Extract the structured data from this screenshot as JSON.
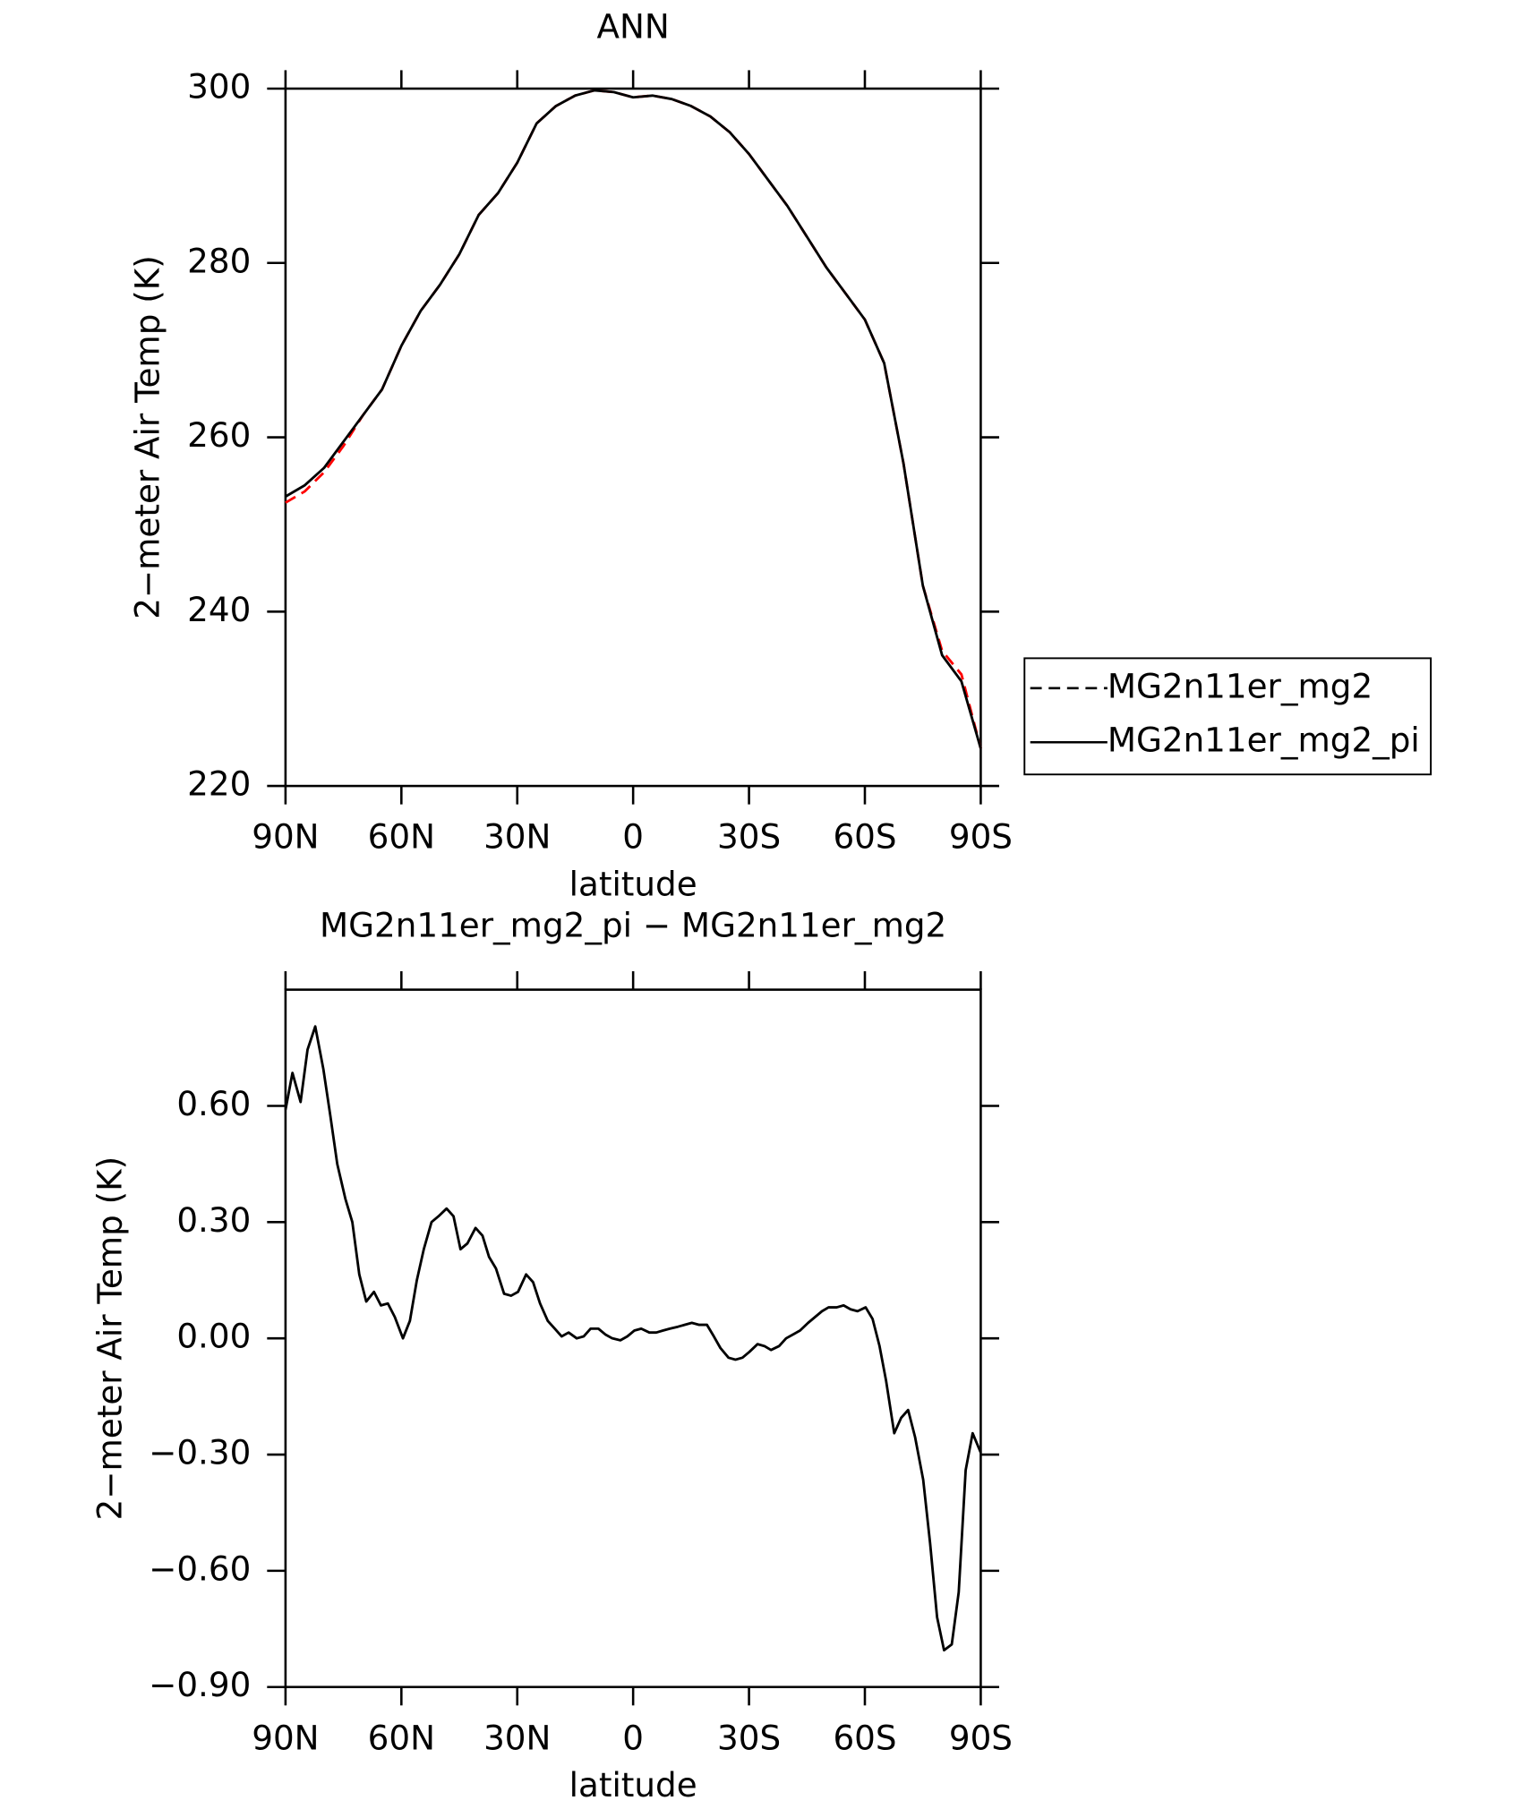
{
  "chart_data": [
    {
      "type": "line",
      "title": "ANN",
      "x_label": "latitude",
      "y_label": "2−meter Air Temp (K)",
      "x": [
        90,
        85,
        80,
        75,
        70,
        65,
        60,
        55,
        50,
        45,
        40,
        35,
        30,
        25,
        20,
        15,
        10,
        5,
        0,
        -5,
        -10,
        -15,
        -20,
        -25,
        -30,
        -35,
        -40,
        -45,
        -50,
        -55,
        -60,
        -65,
        -70,
        -75,
        -80,
        -85,
        -90
      ],
      "series": [
        {
          "name": "MG2n11er_mg2",
          "color": "#ff0000",
          "dash": true,
          "values": [
            252.5,
            253.8,
            256,
            259,
            262.5,
            265.5,
            270.5,
            274.5,
            277.5,
            281,
            285.5,
            288,
            291.5,
            296,
            298,
            299.2,
            299.8,
            299.6,
            299,
            299.2,
            298.8,
            298,
            296.8,
            295,
            292.5,
            289.5,
            286.5,
            283,
            279.5,
            276.5,
            273.5,
            268.5,
            257,
            243,
            235.5,
            232.8,
            224.3
          ]
        },
        {
          "name": "MG2n11er_mg2_pi",
          "color": "#000000",
          "dash": false,
          "values": [
            253.2,
            254.5,
            256.5,
            259.5,
            262.5,
            265.5,
            270.5,
            274.5,
            277.5,
            281,
            285.5,
            288,
            291.5,
            296,
            298,
            299.2,
            299.8,
            299.6,
            299,
            299.2,
            298.8,
            298,
            296.8,
            295,
            292.5,
            289.5,
            286.5,
            283,
            279.5,
            276.5,
            273.5,
            268.5,
            257,
            243,
            235,
            232,
            224.3
          ]
        }
      ],
      "xlim": [
        90,
        -90
      ],
      "xticks": [
        {
          "value": 90,
          "label": "90N"
        },
        {
          "value": 60,
          "label": "60N"
        },
        {
          "value": 30,
          "label": "30N"
        },
        0,
        {
          "value": -30,
          "label": "30S"
        },
        {
          "value": -60,
          "label": "60S"
        },
        {
          "value": -90,
          "label": "90S"
        }
      ],
      "ylim": [
        220,
        300
      ],
      "yticks": [
        220,
        240,
        260,
        280,
        300
      ],
      "legend": "right"
    },
    {
      "type": "line",
      "title": "MG2n11er_mg2_pi − MG2n11er_mg2",
      "x_label": "latitude",
      "y_label": "2−meter Air Temp (K)",
      "x": [
        90,
        88.2,
        86.1,
        84.3,
        82.3,
        80.2,
        78.4,
        76.6,
        74.5,
        72.7,
        70.9,
        69.1,
        67.1,
        65.3,
        63.5,
        61.7,
        59.6,
        57.8,
        56,
        54.2,
        52.2,
        50.4,
        48.3,
        46.5,
        44.7,
        42.9,
        40.8,
        39,
        37.3,
        35.5,
        33.4,
        31.6,
        29.8,
        27.7,
        25.9,
        24.1,
        22.1,
        20.3,
        18.5,
        16.7,
        14.6,
        12.8,
        11,
        9,
        7.2,
        5.4,
        3.3,
        1.5,
        -0.3,
        -2.1,
        -4.2,
        -6,
        -7.7,
        -9.5,
        -11.6,
        -13.4,
        -15.2,
        -17,
        -19.1,
        -20.9,
        -22.6,
        -24.7,
        -26.5,
        -28.3,
        -30.1,
        -32.2,
        -34,
        -35.7,
        -37.8,
        -39.6,
        -41.4,
        -43.2,
        -45.3,
        -47.1,
        -48.9,
        -50.6,
        -52.7,
        -54.5,
        -56.3,
        -58.1,
        -60.2,
        -62,
        -63.8,
        -65.5,
        -67.6,
        -69.4,
        -71.2,
        -73,
        -75.1,
        -76.9,
        -78.7,
        -80.5,
        -82.5,
        -84.3,
        -86.1,
        -87.9,
        -90
      ],
      "series": [
        {
          "name": "MG2n11er_mg2_pi − MG2n11er_mg2",
          "color": "#000000",
          "dash": false,
          "values": [
            0.59,
            0.685,
            0.61,
            0.745,
            0.805,
            0.695,
            0.575,
            0.45,
            0.36,
            0.3,
            0.165,
            0.095,
            0.12,
            0.085,
            0.09,
            0.055,
            0,
            0.045,
            0.15,
            0.23,
            0.3,
            0.315,
            0.335,
            0.315,
            0.23,
            0.245,
            0.285,
            0.265,
            0.21,
            0.18,
            0.115,
            0.11,
            0.12,
            0.165,
            0.145,
            0.09,
            0.045,
            0.025,
            0.005,
            0.015,
            0,
            0.005,
            0.025,
            0.025,
            0.01,
            0,
            -0.005,
            0.005,
            0.02,
            0.025,
            0.015,
            0.015,
            0.02,
            0.025,
            0.03,
            0.035,
            0.04,
            0.035,
            0.035,
            0.005,
            -0.025,
            -0.05,
            -0.055,
            -0.05,
            -0.035,
            -0.015,
            -0.02,
            -0.03,
            -0.02,
            0,
            0.01,
            0.02,
            0.04,
            0.055,
            0.07,
            0.08,
            0.08,
            0.085,
            0.075,
            0.07,
            0.08,
            0.05,
            -0.02,
            -0.11,
            -0.245,
            -0.205,
            -0.185,
            -0.255,
            -0.365,
            -0.53,
            -0.72,
            -0.805,
            -0.79,
            -0.655,
            -0.34,
            -0.245,
            -0.295
          ]
        }
      ],
      "xlim": [
        90,
        -90
      ],
      "xticks": [
        {
          "value": 90,
          "label": "90N"
        },
        {
          "value": 60,
          "label": "60N"
        },
        {
          "value": 30,
          "label": "30N"
        },
        0,
        {
          "value": -30,
          "label": "30S"
        },
        {
          "value": -60,
          "label": "60S"
        },
        {
          "value": -90,
          "label": "90S"
        }
      ],
      "ylim": [
        -0.9,
        0.9
      ],
      "yticks": [
        {
          "value": -0.9,
          "label": "−0.90"
        },
        {
          "value": -0.6,
          "label": "−0.60"
        },
        {
          "value": -0.3,
          "label": "−0.30"
        },
        {
          "value": 0,
          "label": "0.00"
        },
        {
          "value": 0.3,
          "label": "0.30"
        },
        {
          "value": 0.6,
          "label": "0.60"
        }
      ]
    }
  ]
}
